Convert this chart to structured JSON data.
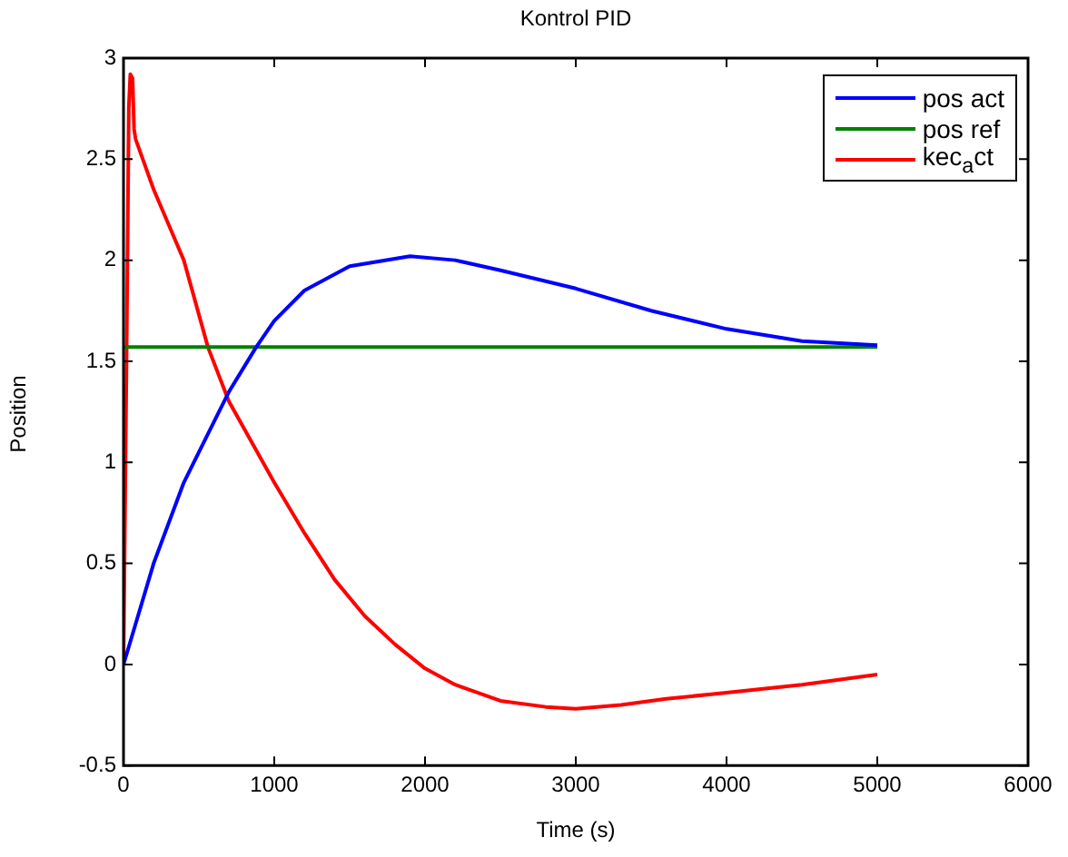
{
  "chart_data": {
    "type": "line",
    "title": "Kontrol PID",
    "xlabel": "Time (s)",
    "ylabel": "Position",
    "xlim": [
      0,
      6000
    ],
    "xticks": [
      0,
      1000,
      2000,
      3000,
      4000,
      5000,
      6000
    ],
    "ylim": [
      -0.5,
      3
    ],
    "yticks": [
      -0.5,
      0,
      0.5,
      1,
      1.5,
      2,
      2.5,
      3
    ],
    "legend": "top right",
    "marker": "none",
    "line_style": "solid",
    "series": [
      {
        "name": "pos act",
        "color": "#0000ff",
        "x": [
          0,
          200,
          400,
          600,
          700,
          880,
          1000,
          1200,
          1500,
          1900,
          2200,
          2500,
          3000,
          3500,
          4000,
          4500,
          5000
        ],
        "values": [
          0,
          0.5,
          0.9,
          1.2,
          1.35,
          1.57,
          1.7,
          1.85,
          1.97,
          2.02,
          2.0,
          1.95,
          1.86,
          1.75,
          1.66,
          1.6,
          1.58
        ]
      },
      {
        "name": "pos ref",
        "color": "#008000",
        "x": [
          0,
          5000
        ],
        "values": [
          1.57,
          1.57
        ]
      },
      {
        "name": "kec$_{a}$ct",
        "color": "#ff0000",
        "x": [
          0,
          20,
          35,
          45,
          60,
          70,
          80,
          200,
          400,
          560,
          700,
          850,
          1000,
          1200,
          1400,
          1600,
          1800,
          2000,
          2200,
          2500,
          2800,
          3000,
          3300,
          3600,
          4000,
          4500,
          5000
        ],
        "values": [
          0,
          1.5,
          2.75,
          2.92,
          2.9,
          2.65,
          2.6,
          2.35,
          2.0,
          1.57,
          1.3,
          1.1,
          0.9,
          0.65,
          0.42,
          0.24,
          0.1,
          -0.02,
          -0.1,
          -0.18,
          -0.21,
          -0.22,
          -0.2,
          -0.17,
          -0.14,
          -0.1,
          -0.05
        ]
      }
    ]
  }
}
